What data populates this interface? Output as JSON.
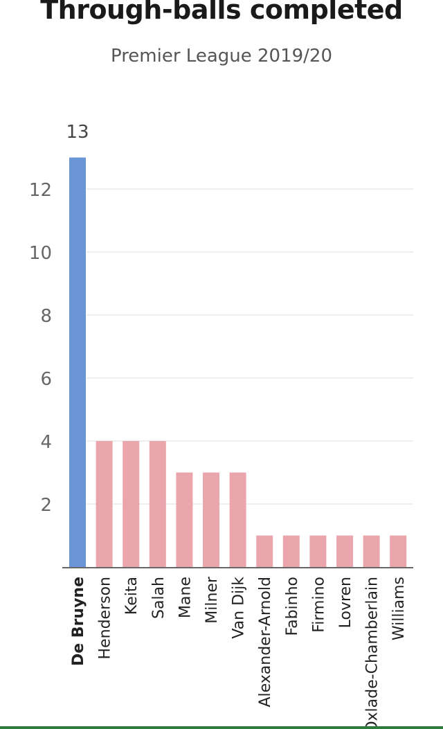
{
  "chart_data": {
    "type": "bar",
    "title": "Through-balls completed",
    "subtitle": "Premier League 2019/20",
    "categories": [
      "De Bruyne",
      "Henderson",
      "Keita",
      "Salah",
      "Mane",
      "Milner",
      "Van Dijk",
      "Alexander-Arnold",
      "Fabinho",
      "Firmino",
      "Lovren",
      "Oxlade-Chamberlain",
      "Williams"
    ],
    "values": [
      13,
      4,
      4,
      4,
      3,
      3,
      3,
      1,
      1,
      1,
      1,
      1,
      1
    ],
    "highlight": {
      "category": "De Bruyne",
      "value_label": "13"
    },
    "ylim": [
      0,
      13
    ],
    "yticks": [
      2,
      4,
      6,
      8,
      10,
      12
    ],
    "xlabel": "",
    "ylabel": "",
    "grid": true,
    "colors": {
      "highlight": "#6a96d8",
      "default": "#eba6ad",
      "grid": "#dddddd",
      "axis": "#333333",
      "tick_text": "#666666"
    }
  }
}
